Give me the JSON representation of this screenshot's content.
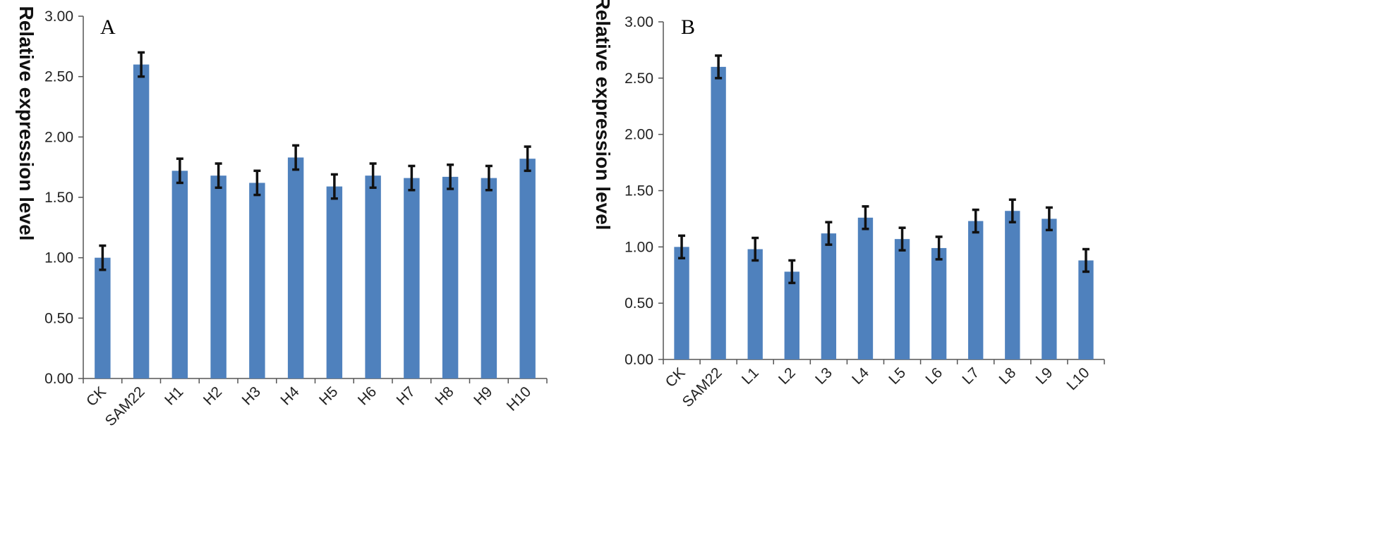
{
  "colors": {
    "bar": "#4F81BD",
    "error_bar": "#111111",
    "axis": "#555555"
  },
  "chart_data": [
    {
      "panel_label": "A",
      "type": "bar",
      "ylabel": "Relative expression level",
      "ylim": [
        0,
        3
      ],
      "ytick_labels": [
        "0.00",
        "0.50",
        "1.00",
        "1.50",
        "2.00",
        "2.50",
        "3.00"
      ],
      "categories": [
        "CK",
        "SAM22",
        "H1",
        "H2",
        "H3",
        "H4",
        "H5",
        "H6",
        "H7",
        "H8",
        "H9",
        "H10"
      ],
      "values": [
        1.0,
        2.6,
        1.72,
        1.68,
        1.62,
        1.83,
        1.59,
        1.68,
        1.66,
        1.67,
        1.66,
        1.82
      ],
      "errors": [
        0.1,
        0.1,
        0.1,
        0.1,
        0.1,
        0.1,
        0.1,
        0.1,
        0.1,
        0.1,
        0.1,
        0.1
      ],
      "grid": false
    },
    {
      "panel_label": "B",
      "type": "bar",
      "ylabel": "Relative expression level",
      "ylim": [
        0,
        3
      ],
      "ytick_labels": [
        "0.00",
        "0.50",
        "1.00",
        "1.50",
        "2.00",
        "2.50",
        "3.00"
      ],
      "categories": [
        "CK",
        "SAM22",
        "L1",
        "L2",
        "L3",
        "L4",
        "L5",
        "L6",
        "L7",
        "L8",
        "L9",
        "L10"
      ],
      "values": [
        1.0,
        2.6,
        0.98,
        0.78,
        1.12,
        1.26,
        1.07,
        0.99,
        1.23,
        1.32,
        1.25,
        0.88
      ],
      "errors": [
        0.1,
        0.1,
        0.1,
        0.1,
        0.1,
        0.1,
        0.1,
        0.1,
        0.1,
        0.1,
        0.1,
        0.1
      ],
      "grid": false
    }
  ]
}
